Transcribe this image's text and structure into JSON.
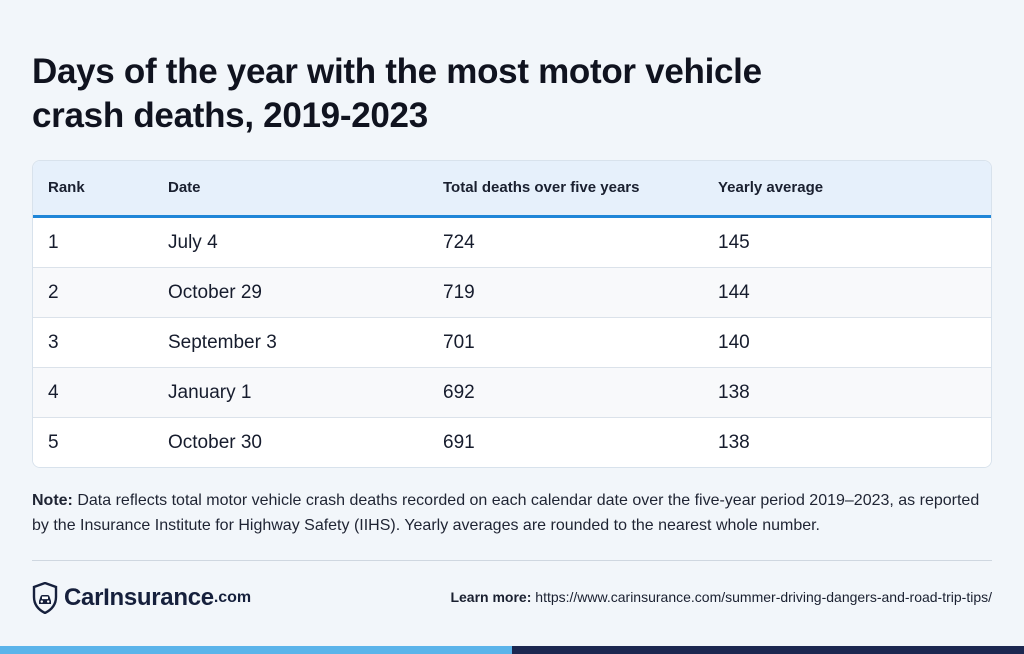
{
  "title": "Days of the year with the most motor vehicle crash deaths, 2019-2023",
  "table": {
    "headers": [
      "Rank",
      "Date",
      "Total deaths over five years",
      "Yearly average"
    ],
    "rows": [
      [
        "1",
        "July 4",
        "724",
        "145"
      ],
      [
        "2",
        "October 29",
        "719",
        "144"
      ],
      [
        "3",
        "September 3",
        "701",
        "140"
      ],
      [
        "4",
        "January 1",
        "692",
        "138"
      ],
      [
        "5",
        "October 30",
        "691",
        "138"
      ]
    ]
  },
  "note": {
    "label": "Note:",
    "text": "Data reflects total motor vehicle crash deaths recorded on each calendar date over the five-year period 2019–2023, as reported by the Insurance Institute for Highway Safety (IIHS). Yearly averages are rounded to the nearest whole number."
  },
  "footer": {
    "logo_main": "CarInsurance",
    "logo_suffix": ".com",
    "learn_label": "Learn more:",
    "learn_url": "https://www.carinsurance.com/summer-driving-dangers-and-road-trip-tips/"
  },
  "colors": {
    "accent": "#1f86d8",
    "brand_dark": "#1c2750",
    "brand_light": "#5bb4ea"
  },
  "icons": [
    "shield-car-icon"
  ]
}
